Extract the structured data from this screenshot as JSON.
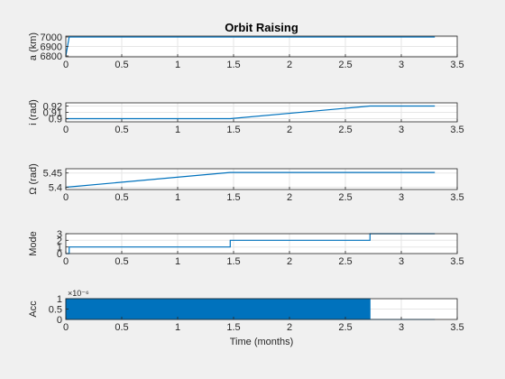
{
  "colors": {
    "figure_bg": "#f0f0f0",
    "axes_bg": "#ffffff",
    "axis": "#262626",
    "grid": "#e6e6e6",
    "series": "#0072bd"
  },
  "chart_data": [
    {
      "type": "line",
      "title": "Orbit Raising",
      "ylabel": "a (km)",
      "xlim": [
        0,
        3.5
      ],
      "ylim": [
        6790,
        7010
      ],
      "xticks": [
        0,
        0.5,
        1,
        1.5,
        2,
        2.5,
        3,
        3.5
      ],
      "xtick_labels": [
        "0",
        "0.5",
        "1",
        "1.5",
        "2",
        "2.5",
        "3",
        "3.5"
      ],
      "yticks": [
        6800,
        6900,
        7000
      ],
      "ytick_labels": [
        "6800",
        "6900",
        "7000"
      ],
      "grid": true,
      "series": [
        {
          "x": [
            0,
            0.03,
            3.3
          ],
          "y": [
            6800,
            7000,
            7000
          ]
        }
      ]
    },
    {
      "type": "line",
      "ylabel": "i (rad)",
      "xlim": [
        0,
        3.5
      ],
      "ylim": [
        0.895,
        0.925
      ],
      "xticks": [
        0,
        0.5,
        1,
        1.5,
        2,
        2.5,
        3,
        3.5
      ],
      "xtick_labels": [
        "0",
        "0.5",
        "1",
        "1.5",
        "2",
        "2.5",
        "3",
        "3.5"
      ],
      "yticks": [
        0.9,
        0.91,
        0.92
      ],
      "ytick_labels": [
        "0.9",
        "0.91",
        "0.92"
      ],
      "grid": true,
      "series": [
        {
          "x": [
            0,
            0.03,
            1.47,
            2.72,
            3.3
          ],
          "y": [
            0.9,
            0.9,
            0.9,
            0.92,
            0.92
          ]
        }
      ]
    },
    {
      "type": "line",
      "ylabel": "Ω (rad)",
      "xlim": [
        0,
        3.5
      ],
      "ylim": [
        5.392,
        5.465
      ],
      "xticks": [
        0,
        0.5,
        1,
        1.5,
        2,
        2.5,
        3,
        3.5
      ],
      "xtick_labels": [
        "0",
        "0.5",
        "1",
        "1.5",
        "2",
        "2.5",
        "3",
        "3.5"
      ],
      "yticks": [
        5.4,
        5.45
      ],
      "ytick_labels": [
        "5.4",
        "5.45"
      ],
      "grid": true,
      "series": [
        {
          "x": [
            0,
            1.47,
            3.3
          ],
          "y": [
            5.4,
            5.452,
            5.452
          ]
        }
      ]
    },
    {
      "type": "line",
      "ylabel": "Mode",
      "xlim": [
        0,
        3.5
      ],
      "ylim": [
        0,
        3
      ],
      "xticks": [
        0,
        0.5,
        1,
        1.5,
        2,
        2.5,
        3,
        3.5
      ],
      "xtick_labels": [
        "0",
        "0.5",
        "1",
        "1.5",
        "2",
        "2.5",
        "3",
        "3.5"
      ],
      "yticks": [
        0,
        1,
        2,
        3
      ],
      "ytick_labels": [
        "0",
        "1",
        "2",
        "3"
      ],
      "grid": true,
      "series": [
        {
          "x": [
            0,
            0.03,
            0.03,
            1.47,
            1.47,
            2.72,
            2.72,
            3.3
          ],
          "y": [
            0,
            0,
            1,
            1,
            2,
            2,
            3,
            3
          ]
        }
      ]
    },
    {
      "type": "area",
      "ylabel": "Acc",
      "xlabel": "Time (months)",
      "exponent_label": "×10⁻⁶",
      "xlim": [
        0,
        3.5
      ],
      "ylim": [
        0,
        1
      ],
      "xticks": [
        0,
        0.5,
        1,
        1.5,
        2,
        2.5,
        3,
        3.5
      ],
      "xtick_labels": [
        "0",
        "0.5",
        "1",
        "1.5",
        "2",
        "2.5",
        "3",
        "3.5"
      ],
      "yticks": [
        0,
        0.5,
        1
      ],
      "ytick_labels": [
        "0",
        "0.5",
        "1"
      ],
      "grid": true,
      "series": [
        {
          "x": [
            0,
            2.72,
            2.72,
            3.3
          ],
          "y": [
            1,
            1,
            0,
            0
          ]
        }
      ]
    }
  ]
}
